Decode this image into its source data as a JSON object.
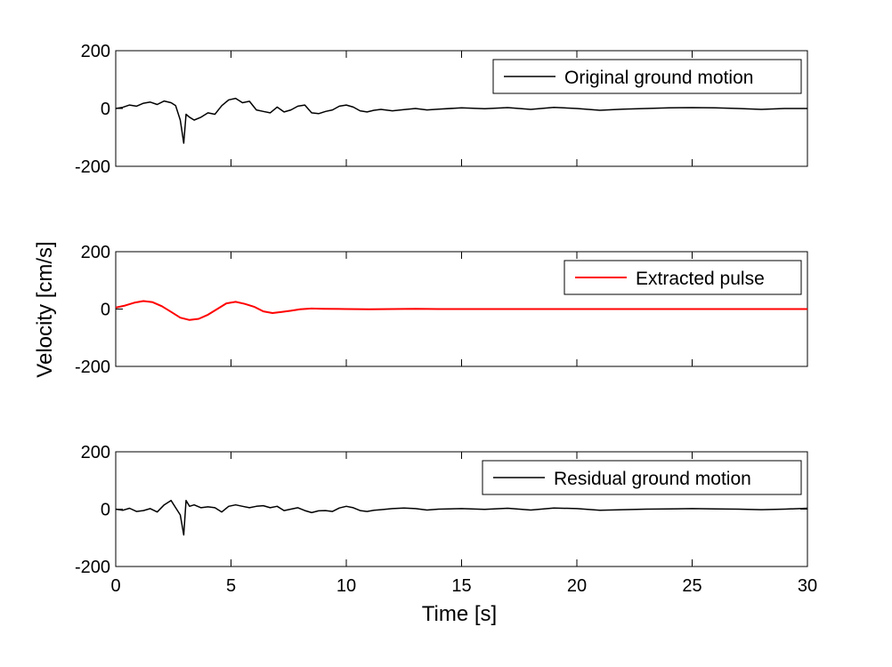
{
  "chart_data": {
    "type": "line",
    "layout": "3-stacked-subplots-shared-x",
    "ylabel": "Velocity [cm/s]",
    "xlabel": "Time [s]",
    "xlim": [
      0,
      30
    ],
    "xticks": [
      0,
      5,
      10,
      15,
      20,
      25,
      30
    ],
    "xtick_labels": [
      "0",
      "5",
      "10",
      "15",
      "20",
      "25",
      "30"
    ],
    "grid": false,
    "subplots": [
      {
        "legend": "Original ground motion",
        "legend_position": "top-right",
        "color": "#000000",
        "ylim": [
          -200,
          200
        ],
        "yticks": [
          -200,
          0,
          200
        ],
        "ytick_labels": [
          "-200",
          "0",
          "200"
        ],
        "series": {
          "name": "Original ground motion",
          "x": [
            0,
            0.3,
            0.6,
            0.9,
            1.2,
            1.5,
            1.8,
            2.1,
            2.4,
            2.6,
            2.8,
            2.95,
            3.05,
            3.2,
            3.4,
            3.7,
            4.0,
            4.3,
            4.6,
            4.9,
            5.2,
            5.5,
            5.8,
            6.1,
            6.4,
            6.7,
            7.0,
            7.3,
            7.6,
            7.9,
            8.2,
            8.5,
            8.8,
            9.1,
            9.4,
            9.7,
            10.0,
            10.3,
            10.6,
            10.9,
            11.2,
            11.5,
            12.0,
            12.5,
            13.0,
            13.5,
            14.0,
            15.0,
            16.0,
            17.0,
            18.0,
            19.0,
            20.0,
            21.0,
            22.0,
            23.0,
            24.0,
            25.0,
            26.0,
            27.0,
            28.0,
            29.0,
            30.0
          ],
          "y": [
            0,
            4,
            12,
            8,
            18,
            22,
            14,
            26,
            20,
            10,
            -40,
            -120,
            -20,
            -30,
            -40,
            -30,
            -15,
            -20,
            10,
            30,
            35,
            20,
            25,
            -5,
            -10,
            -15,
            5,
            -12,
            -5,
            8,
            12,
            -15,
            -18,
            -10,
            -5,
            8,
            12,
            5,
            -8,
            -12,
            -6,
            -3,
            -8,
            -4,
            0,
            -5,
            -2,
            2,
            -1,
            3,
            -3,
            4,
            0,
            -6,
            -2,
            0,
            2,
            3,
            2,
            0,
            -3,
            0,
            0
          ]
        }
      },
      {
        "legend": "Extracted pulse",
        "legend_position": "top-right",
        "color": "#ff0000",
        "ylim": [
          -200,
          200
        ],
        "yticks": [
          -200,
          0,
          200
        ],
        "ytick_labels": [
          "-200",
          "0",
          "200"
        ],
        "series": {
          "name": "Extracted pulse",
          "x": [
            0,
            0.4,
            0.8,
            1.2,
            1.6,
            2.0,
            2.4,
            2.8,
            3.2,
            3.6,
            4.0,
            4.4,
            4.8,
            5.2,
            5.6,
            6.0,
            6.4,
            6.8,
            7.2,
            7.6,
            8.0,
            8.5,
            9.0,
            10.0,
            11.0,
            12.0,
            13.0,
            14.0,
            15.0,
            17.0,
            20.0,
            25.0,
            30.0
          ],
          "y": [
            5,
            12,
            22,
            28,
            24,
            10,
            -10,
            -30,
            -38,
            -34,
            -20,
            0,
            20,
            25,
            18,
            8,
            -8,
            -14,
            -10,
            -6,
            -1,
            2,
            1,
            0,
            -1,
            0,
            1,
            0,
            0,
            0,
            0,
            0,
            0
          ]
        }
      },
      {
        "legend": "Residual ground motion",
        "legend_position": "top-right",
        "color": "#000000",
        "ylim": [
          -200,
          200
        ],
        "yticks": [
          -200,
          0,
          200
        ],
        "ytick_labels": [
          "-200",
          "0",
          "200"
        ],
        "series": {
          "name": "Residual ground motion",
          "x": [
            0,
            0.3,
            0.6,
            0.9,
            1.2,
            1.5,
            1.8,
            2.1,
            2.4,
            2.6,
            2.8,
            2.95,
            3.05,
            3.2,
            3.4,
            3.7,
            4.0,
            4.3,
            4.6,
            4.9,
            5.2,
            5.5,
            5.8,
            6.1,
            6.4,
            6.7,
            7.0,
            7.3,
            7.6,
            7.9,
            8.2,
            8.5,
            8.8,
            9.1,
            9.4,
            9.7,
            10.0,
            10.3,
            10.6,
            10.9,
            11.2,
            11.5,
            12.0,
            12.5,
            13.0,
            13.5,
            14.0,
            15.0,
            16.0,
            17.0,
            18.0,
            19.0,
            20.0,
            21.0,
            22.0,
            23.0,
            24.0,
            25.0,
            26.0,
            27.0,
            28.0,
            29.0,
            30.0
          ],
          "y": [
            0,
            -4,
            3,
            -8,
            -5,
            2,
            -10,
            15,
            30,
            5,
            -20,
            -90,
            30,
            10,
            15,
            5,
            8,
            5,
            -10,
            10,
            15,
            10,
            5,
            10,
            12,
            5,
            10,
            -5,
            0,
            5,
            -5,
            -12,
            -6,
            -5,
            -8,
            4,
            10,
            5,
            -5,
            -8,
            -4,
            -2,
            2,
            4,
            2,
            -3,
            0,
            2,
            -1,
            3,
            -3,
            4,
            2,
            -4,
            -2,
            0,
            1,
            2,
            1,
            0,
            -2,
            0,
            3
          ]
        }
      }
    ]
  }
}
